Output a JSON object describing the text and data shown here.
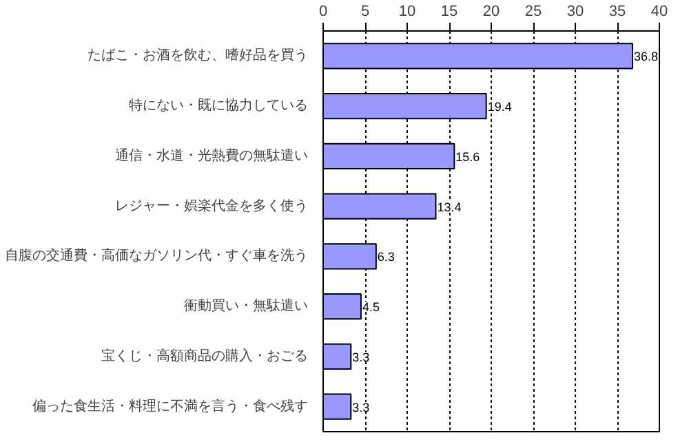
{
  "chart_data": {
    "type": "bar",
    "orientation": "horizontal",
    "categories": [
      "たばこ・お酒を飲む、嗜好品を買う",
      "特にない・既に協力している",
      "通信・水道・光熱費の無駄遣い",
      "レジャー・娯楽代金を多く使う",
      "自腹の交通費・高価なガソリン代・すぐ車を洗う",
      "衝動買い・無駄遣い",
      "宝くじ・高額商品の購入・おごる",
      "偏った食生活・料理に不満を言う・食べ残す"
    ],
    "values": [
      36.8,
      19.4,
      15.6,
      13.4,
      6.3,
      4.5,
      3.3,
      3.3
    ],
    "color": "#9999ff",
    "xlim": [
      0,
      40
    ],
    "xticks": [
      0,
      5,
      10,
      15,
      20,
      25,
      30,
      35,
      40
    ],
    "grid": "x",
    "data_labels": true
  }
}
